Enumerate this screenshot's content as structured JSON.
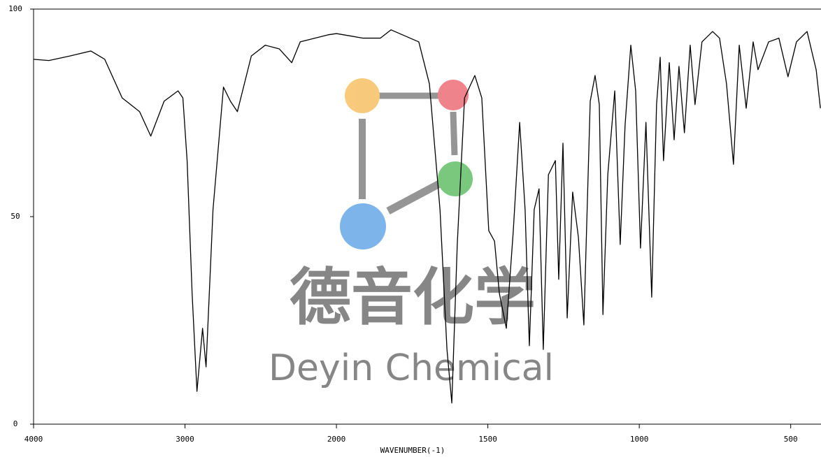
{
  "chart_data": {
    "type": "line",
    "color": "#000000",
    "x_label": "WAVENUMBER(-1)",
    "xlim": [
      4000,
      400
    ],
    "ylim": [
      0,
      100
    ],
    "xticks": [
      4000,
      3000,
      2000,
      1500,
      1000,
      500
    ],
    "yticks": [
      0,
      50,
      100
    ],
    "x_scale_break": {
      "at": 2000,
      "ratio": 2
    },
    "watermark": {
      "title": "德音化学",
      "subtitle": "Deyin Chemical"
    },
    "x": [
      4000,
      3899,
      3760,
      3622,
      3530,
      3415,
      3300,
      3226,
      3138,
      3046,
      3014,
      2986,
      2953,
      2921,
      2884,
      2861,
      2815,
      2746,
      2700,
      2654,
      2562,
      2470,
      2377,
      2295,
      2239,
      2055,
      2000,
      1912,
      1855,
      1820,
      1728,
      1693,
      1658,
      1635,
      1619,
      1601,
      1577,
      1543,
      1520,
      1497,
      1478,
      1462,
      1439,
      1416,
      1395,
      1377,
      1363,
      1347,
      1331,
      1317,
      1300,
      1277,
      1266,
      1252,
      1238,
      1220,
      1201,
      1183,
      1162,
      1146,
      1132,
      1120,
      1104,
      1081,
      1063,
      1047,
      1028,
      1012,
      996,
      978,
      959,
      943,
      931,
      920,
      901,
      885,
      869,
      851,
      832,
      816,
      793,
      758,
      735,
      712,
      689,
      670,
      647,
      624,
      608,
      573,
      539,
      509,
      481,
      446,
      416,
      402
    ],
    "values": [
      87.9,
      87.6,
      88.7,
      89.9,
      87.9,
      78.6,
      75.3,
      69.4,
      77.8,
      80.3,
      78.6,
      63.5,
      31.5,
      7.9,
      23.1,
      13.8,
      51.7,
      81.2,
      77.8,
      75.3,
      88.7,
      91.3,
      90.4,
      87.1,
      92.1,
      93.8,
      94.1,
      93.0,
      93.0,
      95.0,
      92.1,
      82.0,
      51.7,
      18.0,
      5.1,
      43.3,
      78.6,
      84.0,
      78.6,
      46.6,
      44.1,
      31.5,
      23.1,
      46.6,
      72.7,
      51.7,
      18.9,
      51.7,
      56.7,
      18.0,
      60.1,
      63.5,
      34.9,
      67.7,
      25.6,
      55.9,
      45.0,
      23.9,
      77.8,
      84.0,
      77.0,
      26.4,
      60.1,
      80.3,
      43.3,
      71.9,
      91.3,
      80.3,
      42.4,
      72.7,
      30.6,
      77.0,
      88.4,
      63.5,
      87.1,
      68.5,
      86.2,
      70.2,
      91.3,
      77.0,
      92.1,
      94.6,
      93.0,
      82.0,
      62.6,
      91.3,
      76.1,
      92.1,
      85.4,
      92.1,
      93.0,
      83.7,
      92.1,
      94.6,
      85.4,
      76.1
    ]
  }
}
